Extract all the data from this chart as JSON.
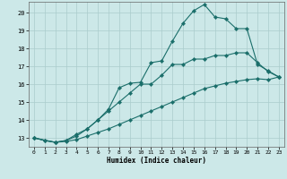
{
  "xlabel": "Humidex (Indice chaleur)",
  "ylabel": "",
  "xlim": [
    -0.5,
    23.5
  ],
  "ylim": [
    12.5,
    20.6
  ],
  "xticks": [
    0,
    1,
    2,
    3,
    4,
    5,
    6,
    7,
    8,
    9,
    10,
    11,
    12,
    13,
    14,
    15,
    16,
    17,
    18,
    19,
    20,
    21,
    22,
    23
  ],
  "yticks": [
    13,
    14,
    15,
    16,
    17,
    18,
    19,
    20
  ],
  "bg_color": "#cce8e8",
  "grid_color": "#aacccc",
  "line_color": "#1a6e6a",
  "line1_x": [
    0,
    1,
    2,
    3,
    4,
    5,
    6,
    7,
    8,
    9,
    10,
    11,
    12,
    13,
    14,
    15,
    16,
    17,
    18,
    19,
    20,
    21,
    22,
    23
  ],
  "line1_y": [
    13.0,
    12.85,
    12.75,
    12.8,
    12.9,
    13.1,
    13.3,
    13.5,
    13.75,
    14.0,
    14.25,
    14.5,
    14.75,
    15.0,
    15.25,
    15.5,
    15.75,
    15.9,
    16.05,
    16.15,
    16.25,
    16.3,
    16.25,
    16.4
  ],
  "line2_x": [
    0,
    1,
    2,
    3,
    4,
    5,
    6,
    7,
    8,
    9,
    10,
    11,
    12,
    13,
    14,
    15,
    16,
    17,
    18,
    19,
    20,
    21,
    22,
    23
  ],
  "line2_y": [
    13.0,
    12.85,
    12.75,
    12.85,
    13.1,
    13.5,
    14.0,
    14.5,
    15.0,
    15.5,
    16.0,
    16.0,
    16.5,
    17.1,
    17.1,
    17.4,
    17.4,
    17.6,
    17.6,
    17.75,
    17.75,
    17.2,
    16.7,
    16.4
  ],
  "line3_x": [
    0,
    2,
    3,
    4,
    5,
    6,
    7,
    8,
    9,
    10,
    11,
    12,
    13,
    14,
    15,
    16,
    17,
    18,
    19,
    20,
    21,
    22,
    23
  ],
  "line3_y": [
    13.0,
    12.75,
    12.85,
    13.2,
    13.5,
    14.0,
    14.6,
    15.8,
    16.05,
    16.1,
    17.2,
    17.3,
    18.4,
    19.4,
    20.1,
    20.45,
    19.75,
    19.65,
    19.1,
    19.1,
    17.1,
    16.75,
    16.4
  ]
}
